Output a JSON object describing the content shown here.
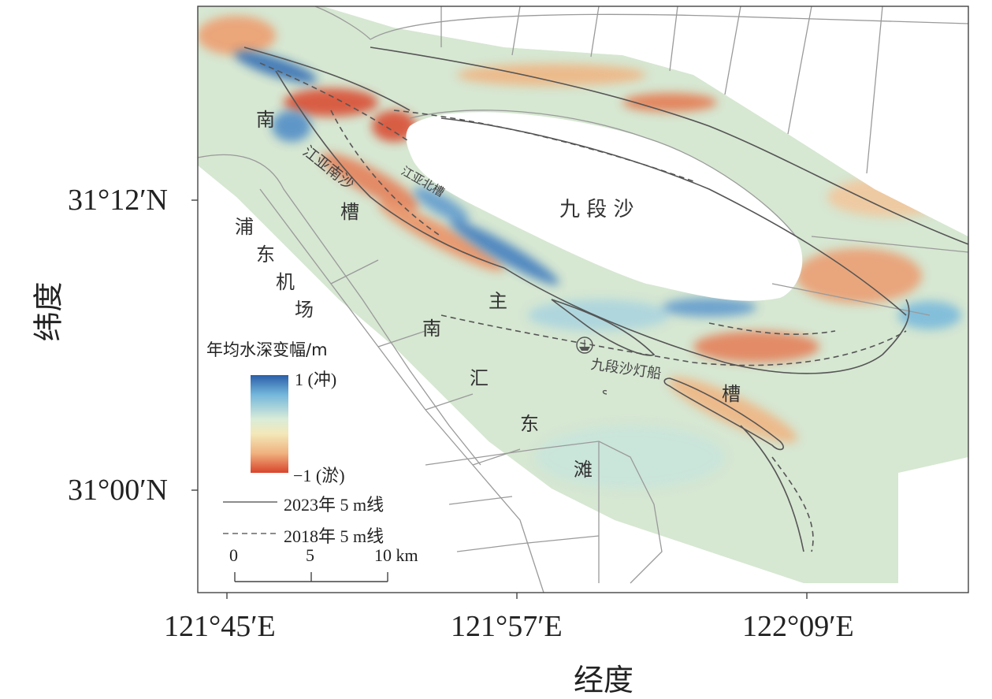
{
  "axes": {
    "xlabel": "经度",
    "ylabel": "纬度",
    "x_ticks": [
      "121°45′E",
      "121°57′E",
      "122°09′E"
    ],
    "y_ticks": [
      "31°12′N",
      "31°00′N"
    ]
  },
  "place_labels": {
    "nan_cao": [
      "南",
      "槽"
    ],
    "pudong_airport": [
      "浦",
      "东",
      "机",
      "场"
    ],
    "nanhui_dongtan": [
      "南",
      "汇",
      "东",
      "滩"
    ],
    "jiuduan_sha": "九 段 沙",
    "main_channel": [
      "主",
      "槽"
    ],
    "jiangyanan_sha": "江亚南沙",
    "jiangya_beicao": "江亚北槽",
    "lightship": "九段沙灯船"
  },
  "legend": {
    "title": "年均水深变幅/m",
    "max_label": "1 (冲)",
    "min_label": "−1 (淤)",
    "colors": [
      "#2a5ea8",
      "#74b7dc",
      "#d9ecd8",
      "#f3e8b8",
      "#f0b27f",
      "#d9442c"
    ],
    "line_2023": "2023年 5 m线",
    "line_2018": "2018年 5 m线"
  },
  "scalebar": {
    "labels": [
      "0",
      "5",
      "10 km"
    ]
  },
  "colors": {
    "erosion": "#2f6bb3",
    "deposition": "#d9442c",
    "neutral": "#e9ecc9",
    "background_field": "#cfe6de"
  }
}
